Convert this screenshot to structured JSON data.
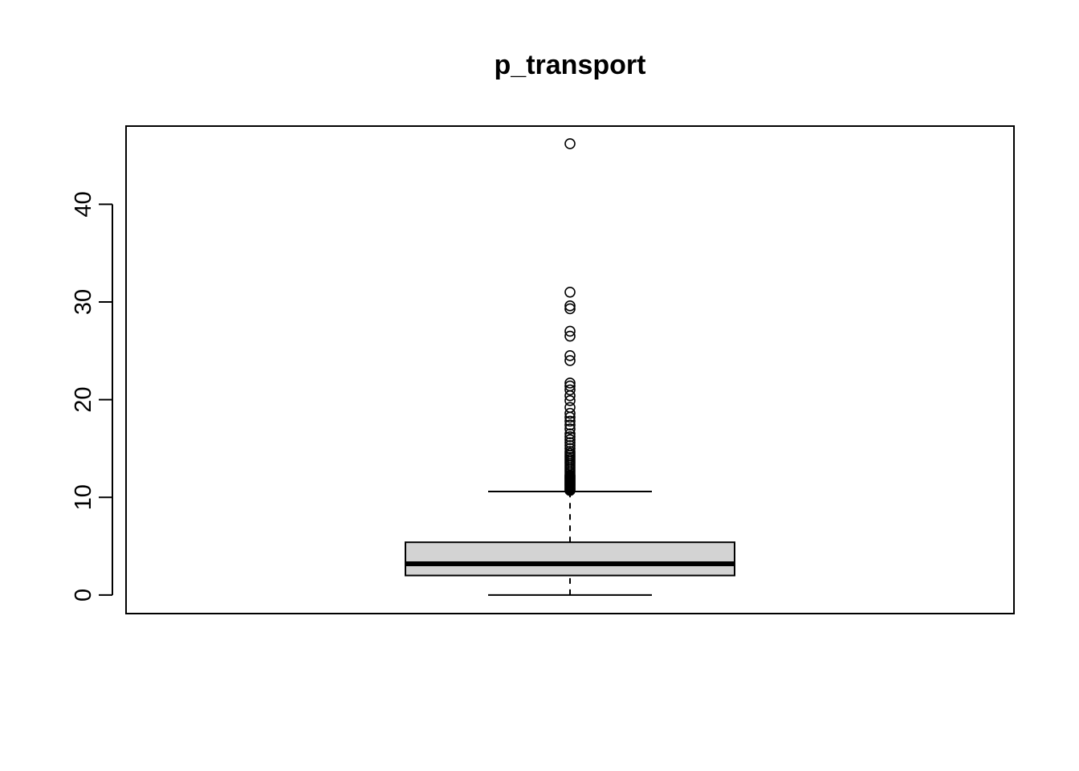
{
  "chart_data": {
    "type": "box",
    "title": "p_transport",
    "xlabel": "",
    "ylabel": "",
    "ylim": [
      -1.9,
      48
    ],
    "y_ticks": [
      0,
      10,
      20,
      30,
      40
    ],
    "y_tick_labels": [
      "0",
      "10",
      "20",
      "30",
      "40"
    ],
    "grid": false,
    "box": {
      "whisker_low": 0,
      "q1": 2.0,
      "median": 3.2,
      "q3": 5.4,
      "whisker_high": 10.6
    },
    "outliers": [
      10.7,
      10.8,
      10.9,
      11.0,
      11.1,
      11.2,
      11.3,
      11.4,
      11.5,
      11.6,
      11.7,
      11.8,
      11.9,
      12.0,
      12.1,
      12.2,
      12.3,
      12.5,
      12.7,
      12.9,
      13.1,
      13.3,
      13.5,
      13.7,
      13.9,
      14.1,
      14.3,
      14.5,
      14.7,
      15.0,
      15.3,
      15.6,
      15.9,
      16.2,
      16.5,
      17.0,
      17.4,
      17.8,
      18.2,
      18.6,
      19.2,
      19.9,
      20.4,
      21.0,
      21.4,
      21.7,
      24.0,
      24.5,
      26.5,
      27.0,
      29.3,
      29.6,
      31.0,
      46.2
    ],
    "colors": {
      "box_fill": "#d3d3d3",
      "stroke": "#000000"
    }
  }
}
